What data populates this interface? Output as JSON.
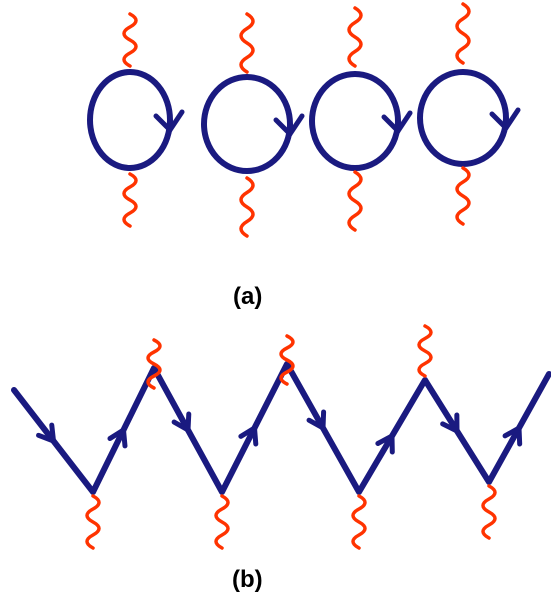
{
  "panels": [
    {
      "id": "a",
      "label": "(a)"
    },
    {
      "id": "b",
      "label": "(b)"
    }
  ],
  "colors": {
    "propagator": "#1a1a80",
    "photon": "#ff3300",
    "text": "#000000"
  },
  "icons": {
    "loop_arrow": "chevron-down-icon",
    "line_arrow": "arrow-head-icon"
  }
}
